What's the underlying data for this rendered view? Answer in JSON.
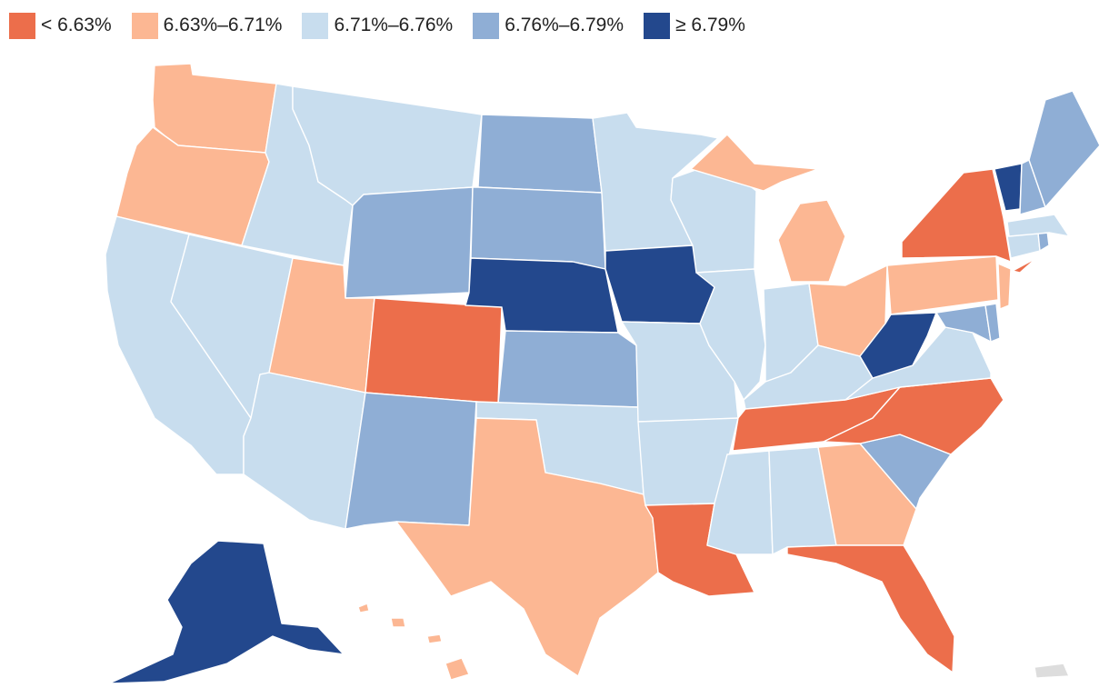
{
  "legend": [
    {
      "label": "< 6.63%",
      "color": "#ec6e4b"
    },
    {
      "label": "6.63%–6.71%",
      "color": "#fcb793"
    },
    {
      "label": "6.71%–6.76%",
      "color": "#c8ddee"
    },
    {
      "label": "6.76%–6.79%",
      "color": "#8faed5"
    },
    {
      "label": "≥ 6.79%",
      "color": "#23488d"
    }
  ],
  "states": [
    {
      "name": "Washington",
      "cls": 1
    },
    {
      "name": "Oregon",
      "cls": 1
    },
    {
      "name": "California",
      "cls": 2
    },
    {
      "name": "Nevada",
      "cls": 2
    },
    {
      "name": "Idaho",
      "cls": 2
    },
    {
      "name": "Montana",
      "cls": 2
    },
    {
      "name": "Wyoming",
      "cls": 3
    },
    {
      "name": "Utah",
      "cls": 1
    },
    {
      "name": "Arizona",
      "cls": 2
    },
    {
      "name": "Colorado",
      "cls": 0
    },
    {
      "name": "New Mexico",
      "cls": 3
    },
    {
      "name": "North Dakota",
      "cls": 3
    },
    {
      "name": "South Dakota",
      "cls": 3
    },
    {
      "name": "Nebraska",
      "cls": 4
    },
    {
      "name": "Kansas",
      "cls": 3
    },
    {
      "name": "Oklahoma",
      "cls": 2
    },
    {
      "name": "Texas",
      "cls": 1
    },
    {
      "name": "Minnesota",
      "cls": 2
    },
    {
      "name": "Iowa",
      "cls": 4
    },
    {
      "name": "Missouri",
      "cls": 2
    },
    {
      "name": "Arkansas",
      "cls": 2
    },
    {
      "name": "Louisiana",
      "cls": 0
    },
    {
      "name": "Wisconsin",
      "cls": 2
    },
    {
      "name": "Illinois",
      "cls": 2
    },
    {
      "name": "Michigan",
      "cls": 1
    },
    {
      "name": "Indiana",
      "cls": 2
    },
    {
      "name": "Ohio",
      "cls": 1
    },
    {
      "name": "Kentucky",
      "cls": 2
    },
    {
      "name": "Tennessee",
      "cls": 0
    },
    {
      "name": "Mississippi",
      "cls": 2
    },
    {
      "name": "Alabama",
      "cls": 2
    },
    {
      "name": "Georgia",
      "cls": 1
    },
    {
      "name": "Florida",
      "cls": 0
    },
    {
      "name": "South Carolina",
      "cls": 3
    },
    {
      "name": "North Carolina",
      "cls": 0
    },
    {
      "name": "Virginia",
      "cls": 2
    },
    {
      "name": "West Virginia",
      "cls": 4
    },
    {
      "name": "Pennsylvania",
      "cls": 1
    },
    {
      "name": "New York",
      "cls": 0
    },
    {
      "name": "Maryland",
      "cls": 3
    },
    {
      "name": "Delaware",
      "cls": 3
    },
    {
      "name": "New Jersey",
      "cls": 1
    },
    {
      "name": "Connecticut",
      "cls": 2
    },
    {
      "name": "Rhode Island",
      "cls": 3
    },
    {
      "name": "Massachusetts",
      "cls": 2
    },
    {
      "name": "Vermont",
      "cls": 4
    },
    {
      "name": "New Hampshire",
      "cls": 3
    },
    {
      "name": "Maine",
      "cls": 3
    },
    {
      "name": "Alaska",
      "cls": 4
    },
    {
      "name": "Hawaii",
      "cls": 1
    },
    {
      "name": "Puerto Rico",
      "cls": -1
    }
  ],
  "no_data_color": "#dddddd"
}
